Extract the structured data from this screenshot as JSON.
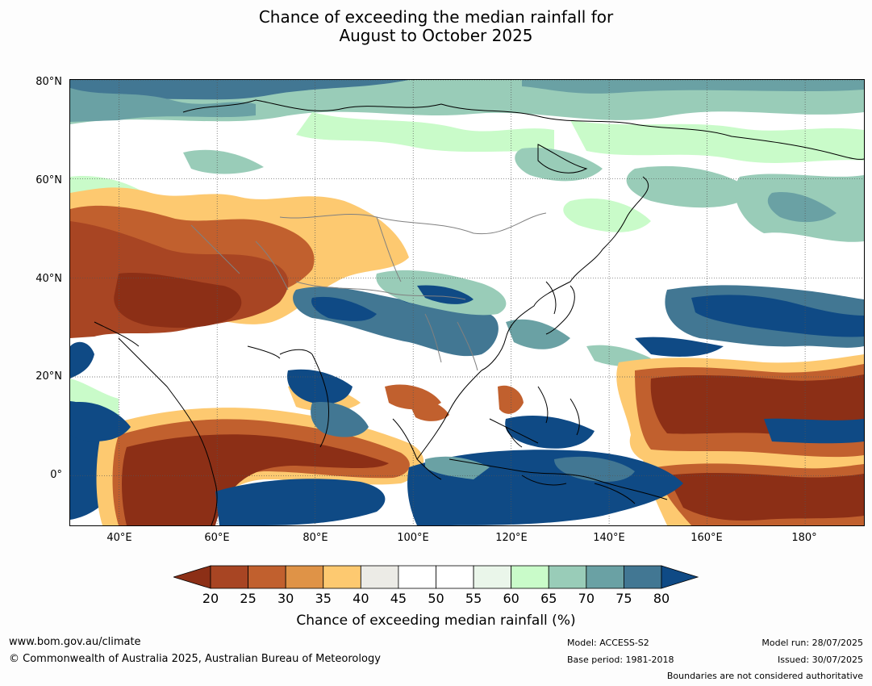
{
  "title": {
    "line1": "Chance of exceeding the median rainfall for",
    "line2": "August to October 2025"
  },
  "map": {
    "lat_labels": [
      "80°N",
      "60°N",
      "40°N",
      "20°N",
      "0°"
    ],
    "lon_labels": [
      "40°E",
      "60°E",
      "80°E",
      "100°E",
      "120°E",
      "140°E",
      "160°E",
      "180°"
    ],
    "lat_range": [
      -10,
      80
    ],
    "lon_range": [
      30,
      192
    ],
    "graticule": true
  },
  "colorbar": {
    "ticks": [
      "20",
      "25",
      "30",
      "35",
      "40",
      "45",
      "50",
      "55",
      "60",
      "65",
      "70",
      "75",
      "80"
    ],
    "under_color": "#8c2f16",
    "over_color": "#0f4a85",
    "bins": [
      "#a84523",
      "#c1602e",
      "#df9347",
      "#fdc970",
      "#ecebe6",
      "#ffffff",
      "#ffffff",
      "#eaf6ea",
      "#c9fbc9",
      "#99ccb8",
      "#6aa1a4",
      "#427793"
    ],
    "label": "Chance of exceeding median rainfall (%)"
  },
  "footer": {
    "url": "www.bom.gov.au/climate",
    "copyright": "© Commonwealth of Australia 2025, Australian Bureau of Meteorology",
    "model": "Model: ACCESS-S2",
    "base_period": "Base period: 1981-2018",
    "model_run": "Model run: 28/07/2025",
    "issued": "Issued: 30/07/2025",
    "disclaimer": "Boundaries are not considered authoritative"
  }
}
